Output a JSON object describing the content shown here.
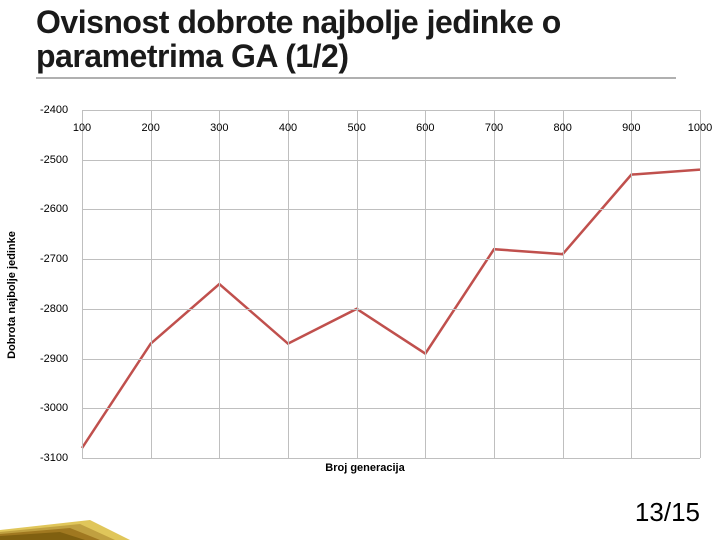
{
  "title": "Ovisnost dobrote najbolje jedinke o parametrima GA (1/2)",
  "title_fontsize": 32,
  "pager": "13/15",
  "pager_fontsize": 26,
  "chart": {
    "type": "line",
    "x": [
      100,
      200,
      300,
      400,
      500,
      600,
      700,
      800,
      900,
      1000
    ],
    "y": [
      -3080,
      -2870,
      -2750,
      -2870,
      -2800,
      -2890,
      -2680,
      -2690,
      -2530,
      -2520
    ],
    "line_color": "#c0504d",
    "line_width": 2.5,
    "xlim": [
      100,
      1000
    ],
    "ylim": [
      -3100,
      -2400
    ],
    "ytick_step": 100,
    "yticks": [
      -2400,
      -2500,
      -2600,
      -2700,
      -2800,
      -2900,
      -3000,
      -3100
    ],
    "xticks": [
      100,
      200,
      300,
      400,
      500,
      600,
      700,
      800,
      900,
      1000
    ],
    "grid_color": "#bfbfbf",
    "background_color": "#ffffff",
    "ylabel": "Dobrota najbolje jedinke",
    "xlabel": "Broj generacija",
    "tick_fontsize": 11,
    "label_fontsize": 11
  },
  "corner_accent": {
    "colors": [
      "#e0c65a",
      "#c0a040",
      "#a07820",
      "#806010"
    ]
  }
}
